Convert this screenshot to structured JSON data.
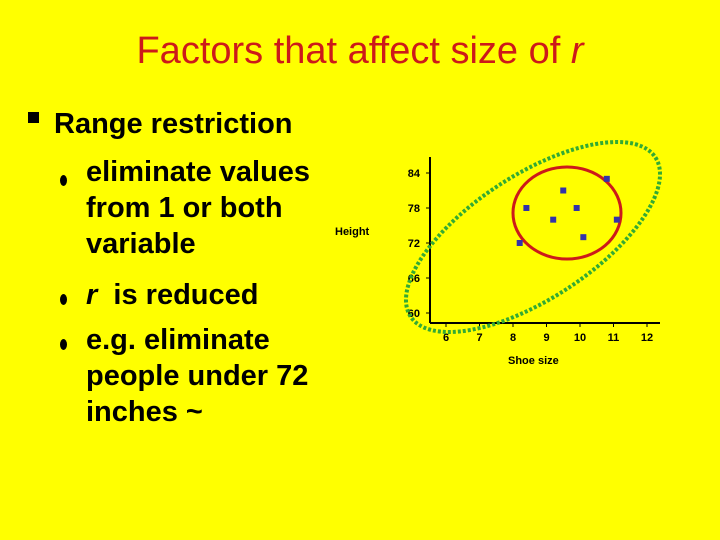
{
  "slide": {
    "title_prefix": "Factors that affect size of",
    "title_var": "r",
    "main_bullet": "Range restriction",
    "sub_bullets": [
      {
        "lines": [
          "eliminate values",
          "from 1 or both",
          "variable"
        ]
      },
      {
        "var": "r",
        "text": "is reduced"
      },
      {
        "lines": [
          "e.g. eliminate",
          "people under 72",
          "inches ~"
        ]
      }
    ]
  },
  "chart_data": {
    "type": "scatter",
    "xlabel": "Shoe size",
    "ylabel": "Height",
    "x_ticks": [
      "6",
      "7",
      "8",
      "9",
      "10",
      "11",
      "12"
    ],
    "y_ticks": [
      "84",
      "78",
      "72",
      "66",
      "60"
    ],
    "xlim": [
      6,
      12
    ],
    "ylim": [
      60,
      84
    ],
    "points": [
      {
        "x": 8.2,
        "y": 72
      },
      {
        "x": 8.4,
        "y": 78
      },
      {
        "x": 9.2,
        "y": 76
      },
      {
        "x": 9.5,
        "y": 81
      },
      {
        "x": 9.9,
        "y": 78
      },
      {
        "x": 10.1,
        "y": 73
      },
      {
        "x": 10.8,
        "y": 83
      },
      {
        "x": 11.1,
        "y": 76
      }
    ],
    "colors": {
      "points": "#3333AA",
      "circle": "#CC1A1A",
      "ellipse": "#33AA33"
    }
  }
}
